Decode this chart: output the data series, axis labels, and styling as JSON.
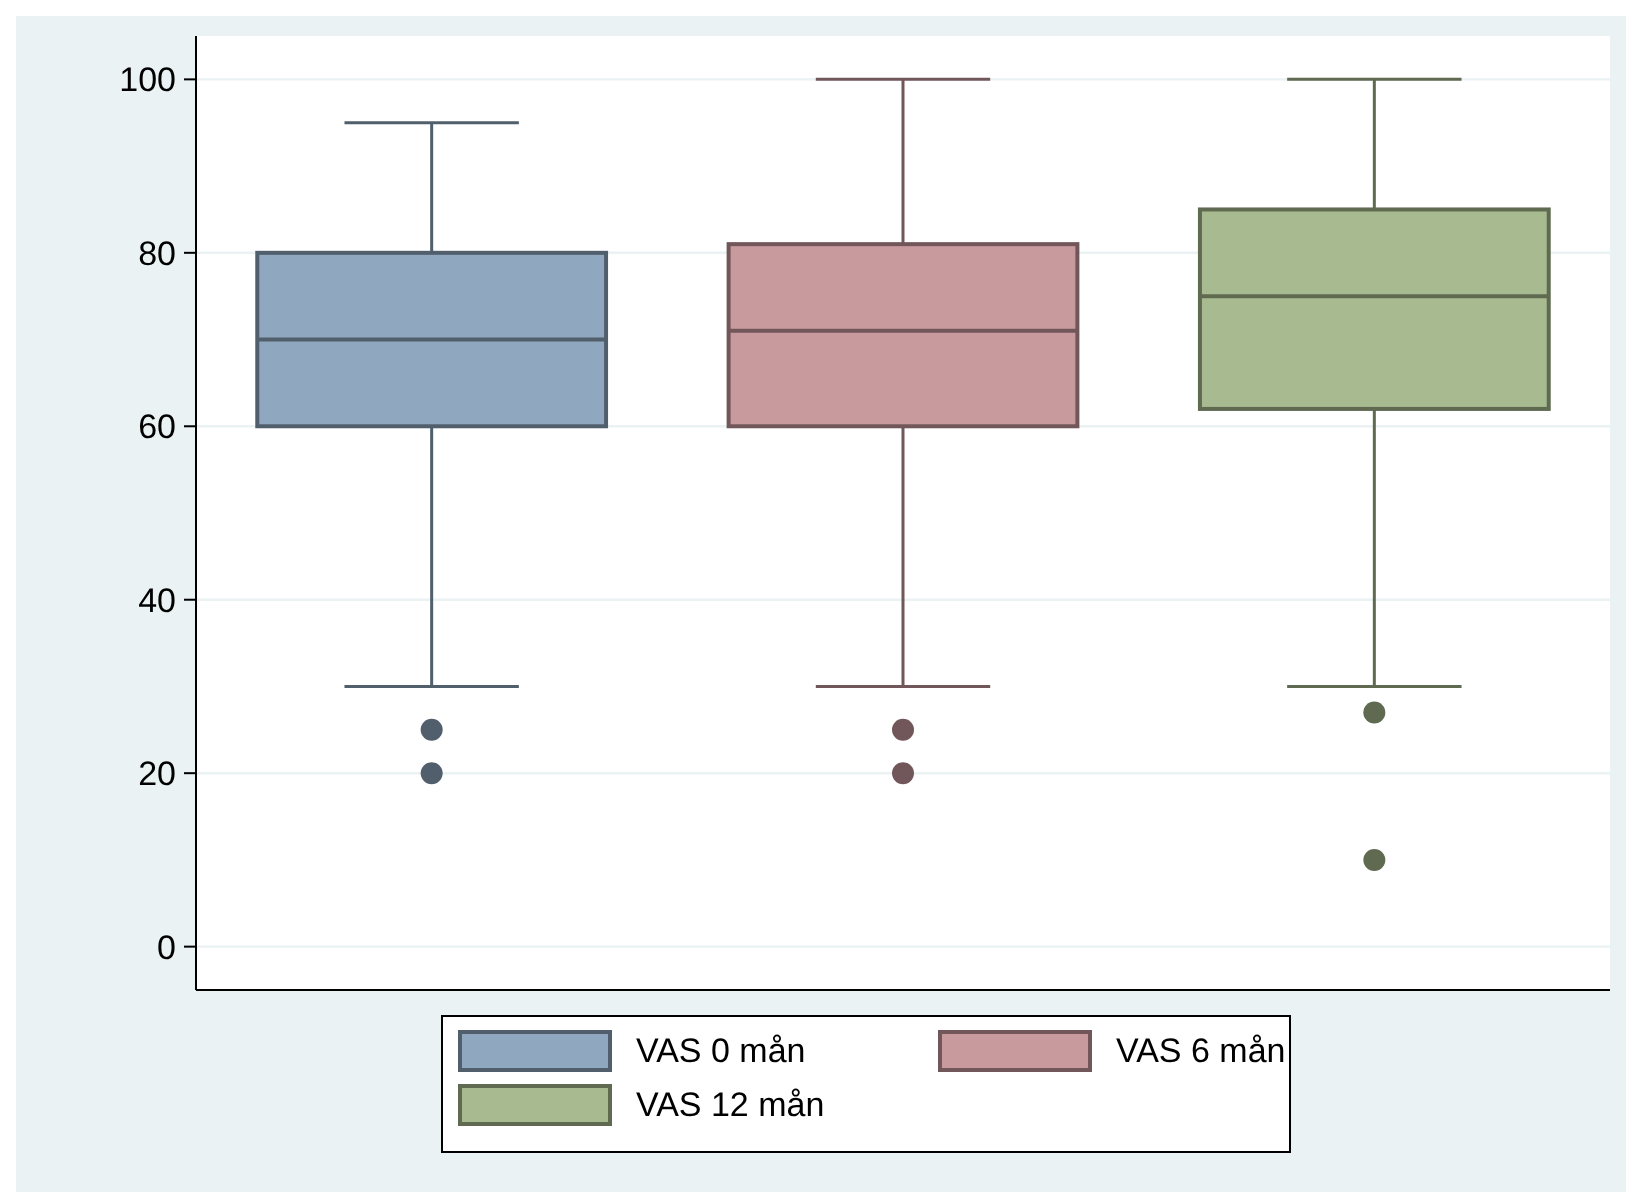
{
  "chart_data": {
    "type": "box",
    "categories": [
      null
    ],
    "series": [
      {
        "name": "VAS 0 mån",
        "color": "#90a8bf",
        "boxes": [
          {
            "low": 30,
            "q1": 60,
            "median": 70,
            "q3": 80,
            "high": 95,
            "outliers": [
              25,
              20
            ]
          }
        ]
      },
      {
        "name": "VAS 6 mån",
        "color": "#c89a9e",
        "boxes": [
          {
            "low": 30,
            "q1": 60,
            "median": 71,
            "q3": 81,
            "high": 100,
            "outliers": [
              25,
              20
            ]
          }
        ]
      },
      {
        "name": "VAS 12 mån",
        "color": "#a8bb90",
        "boxes": [
          {
            "low": 30,
            "q1": 62,
            "median": 75,
            "q3": 85,
            "high": 100,
            "outliers": [
              27,
              10
            ]
          }
        ]
      }
    ],
    "ylim": [
      -5,
      105
    ],
    "yticks": [
      0,
      20,
      40,
      60,
      80,
      100
    ],
    "grid": "y",
    "legend": "bottom"
  }
}
